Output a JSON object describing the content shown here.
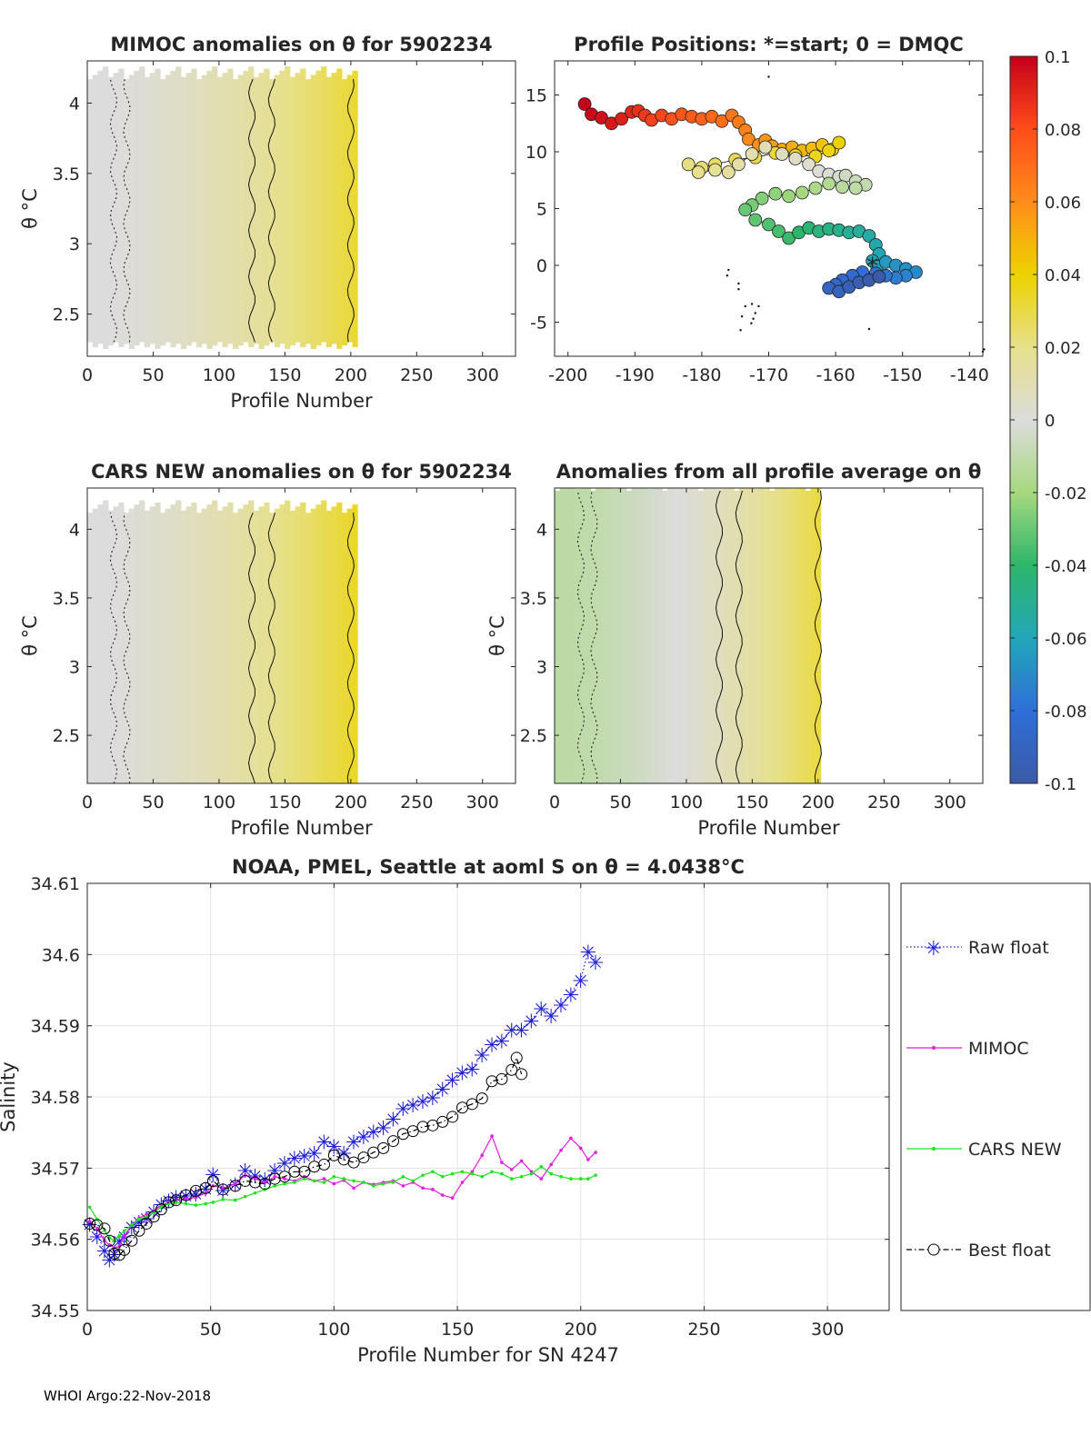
{
  "colorbar": {
    "ticks": [
      {
        "value": 0.1,
        "label": "0.1"
      },
      {
        "value": 0.08,
        "label": "0.08"
      },
      {
        "value": 0.06,
        "label": "0.06"
      },
      {
        "value": 0.04,
        "label": "0.04"
      },
      {
        "value": 0.02,
        "label": "0.02"
      },
      {
        "value": 0,
        "label": "0"
      },
      {
        "value": -0.02,
        "label": "-0.02"
      },
      {
        "value": -0.04,
        "label": "-0.04"
      },
      {
        "value": -0.06,
        "label": "-0.06"
      },
      {
        "value": -0.08,
        "label": "-0.08"
      },
      {
        "value": -0.1,
        "label": "-0.1"
      }
    ],
    "stops": [
      "#3b5aa8",
      "#2f6fd8",
      "#22a7b8",
      "#2db66a",
      "#a6d87e",
      "#dcdcdc",
      "#e6e08a",
      "#ecd300",
      "#ff8c1a",
      "#ff4d1a",
      "#c4001a"
    ]
  },
  "chart_data": [
    {
      "id": "mimoc",
      "type": "heatmap",
      "title": "MIMOC anomalies on θ  for 5902234",
      "xlabel": "Profile Number",
      "ylabel": "θ °C",
      "xlim": [
        0,
        325
      ],
      "ylim": [
        2.2,
        4.3
      ],
      "xticks": [
        0,
        50,
        100,
        150,
        200,
        250,
        300
      ],
      "yticks": [
        2.5,
        3,
        3.5,
        4
      ],
      "data_xmax": 205,
      "data_yrange": [
        2.3,
        4.17
      ],
      "anomaly_start": 0.0,
      "anomaly_end": 0.032
    },
    {
      "id": "positions",
      "type": "scatter",
      "title": "Profile Positions: *=start; 0 = DMQC",
      "xlabel": "",
      "ylabel": "",
      "xlim": [
        -202,
        -138
      ],
      "ylim": [
        -8,
        18
      ],
      "xticks": [
        -200,
        -190,
        -180,
        -170,
        -160,
        -150,
        -140
      ],
      "yticks": [
        -5,
        0,
        5,
        10,
        15
      ],
      "track": [
        [
          -197.5,
          14.2
        ],
        [
          -196.5,
          13.3
        ],
        [
          -195,
          13
        ],
        [
          -193.5,
          12.5
        ],
        [
          -192,
          12.9
        ],
        [
          -190.5,
          13.5
        ],
        [
          -189.5,
          13.6
        ],
        [
          -188.5,
          13.2
        ],
        [
          -187.5,
          12.8
        ],
        [
          -186,
          13.2
        ],
        [
          -184.5,
          12.9
        ],
        [
          -183,
          13.3
        ],
        [
          -181.5,
          13.1
        ],
        [
          -180,
          12.9
        ],
        [
          -178.5,
          13.1
        ],
        [
          -177,
          12.7
        ],
        [
          -175.5,
          13.2
        ],
        [
          -174.5,
          12.6
        ],
        [
          -173.5,
          11.9
        ],
        [
          -173,
          11.1
        ],
        [
          -171.5,
          10.6
        ],
        [
          -170.5,
          11
        ],
        [
          -169.5,
          10.5
        ],
        [
          -168,
          10.2
        ],
        [
          -166.5,
          10.4
        ],
        [
          -165,
          10.1
        ],
        [
          -163.5,
          10.3
        ],
        [
          -162,
          10.6
        ],
        [
          -160.5,
          10.2
        ],
        [
          -159.5,
          10.8
        ],
        [
          -161,
          10.1
        ],
        [
          -163,
          9.6
        ],
        [
          -166,
          9.7
        ],
        [
          -169,
          9.9
        ],
        [
          -172,
          9.5
        ],
        [
          -175,
          9.3
        ],
        [
          -178,
          8.9
        ],
        [
          -180,
          8.6
        ],
        [
          -182,
          8.9
        ],
        [
          -180.5,
          8.2
        ],
        [
          -178,
          8.4
        ],
        [
          -176,
          8.2
        ],
        [
          -174.5,
          8.9
        ],
        [
          -172.5,
          9.8
        ],
        [
          -170.5,
          10.4
        ],
        [
          -168,
          9.8
        ],
        [
          -166,
          9.4
        ],
        [
          -164,
          8.9
        ],
        [
          -162.5,
          8.3
        ],
        [
          -161,
          8.0
        ],
        [
          -159.5,
          7.8
        ],
        [
          -158.5,
          7.9
        ],
        [
          -157,
          7.4
        ],
        [
          -155.5,
          7.1
        ],
        [
          -157,
          6.8
        ],
        [
          -159,
          6.9
        ],
        [
          -161,
          7.2
        ],
        [
          -163,
          6.8
        ],
        [
          -165,
          6.4
        ],
        [
          -167,
          6.1
        ],
        [
          -169,
          6.3
        ],
        [
          -171,
          5.9
        ],
        [
          -172.5,
          5.3
        ],
        [
          -173.5,
          4.9
        ],
        [
          -172,
          4.0
        ],
        [
          -170,
          3.6
        ],
        [
          -168.5,
          3.0
        ],
        [
          -167,
          2.4
        ],
        [
          -165.5,
          2.9
        ],
        [
          -164,
          3.3
        ],
        [
          -162.5,
          3.0
        ],
        [
          -161,
          3.2
        ],
        [
          -159.5,
          3.1
        ],
        [
          -158,
          2.9
        ],
        [
          -156.5,
          3.0
        ],
        [
          -155,
          2.6
        ],
        [
          -154,
          1.8
        ],
        [
          -153.5,
          1.0
        ],
        [
          -154.5,
          0.4
        ],
        [
          -153.8,
          -0.1
        ],
        [
          -152.5,
          0.3
        ],
        [
          -151,
          0.0
        ],
        [
          -149.5,
          -0.3
        ],
        [
          -148,
          -0.6
        ],
        [
          -149.5,
          -0.9
        ],
        [
          -151,
          -1.1
        ],
        [
          -152.5,
          -0.9
        ],
        [
          -154,
          -0.7
        ],
        [
          -156,
          -0.6
        ],
        [
          -157.5,
          -0.9
        ],
        [
          -159,
          -1.3
        ],
        [
          -160,
          -1.7
        ],
        [
          -161,
          -2.0
        ],
        [
          -159.5,
          -2.3
        ],
        [
          -158,
          -1.9
        ],
        [
          -156.5,
          -1.5
        ],
        [
          -155,
          -1.3
        ],
        [
          -153.5,
          -1.0
        ]
      ],
      "start": [
        -154.5,
        0.2
      ],
      "stray_points": [
        [
          -176,
          -0.4
        ],
        [
          -176.2,
          -0.9
        ],
        [
          -174.5,
          -1.6
        ],
        [
          -174.5,
          -2.1
        ],
        [
          -173.5,
          -3.6
        ],
        [
          -172.5,
          -3.4
        ],
        [
          -171.5,
          -3.6
        ],
        [
          -172,
          -4.2
        ],
        [
          -174,
          -4.5
        ],
        [
          -172.3,
          -4.7
        ],
        [
          -174.2,
          -5.7
        ],
        [
          -172.6,
          -5.1
        ],
        [
          -170,
          16.6
        ],
        [
          -138,
          -7.6
        ],
        [
          -137.8,
          -7.4
        ],
        [
          -155,
          -5.6
        ],
        [
          -165.5,
          3.3
        ],
        [
          -158.5,
          8.3
        ]
      ],
      "color_range": [
        -0.1,
        0.1
      ]
    },
    {
      "id": "cars",
      "type": "heatmap",
      "title": "CARS NEW anomalies on θ for 5902234",
      "xlabel": "Profile Number",
      "ylabel": "θ °C",
      "xlim": [
        0,
        325
      ],
      "ylim": [
        2.15,
        4.3
      ],
      "xticks": [
        0,
        50,
        100,
        150,
        200,
        250,
        300
      ],
      "yticks": [
        2.5,
        3,
        3.5,
        4
      ],
      "data_xmax": 205,
      "data_yrange": [
        2.15,
        4.12
      ],
      "anomaly_start": 0.0,
      "anomaly_end": 0.034
    },
    {
      "id": "allavg",
      "type": "heatmap",
      "title": "Anomalies from all profile average on θ",
      "xlabel": "Profile Number",
      "ylabel": "θ °C",
      "xlim": [
        0,
        325
      ],
      "ylim": [
        2.15,
        4.3
      ],
      "xticks": [
        0,
        50,
        100,
        150,
        200,
        250,
        300
      ],
      "yticks": [
        2.5,
        3,
        3.5,
        4
      ],
      "data_xmax": 202,
      "data_yrange": [
        2.15,
        4.28
      ],
      "anomaly_start": -0.012,
      "anomaly_end": 0.03
    },
    {
      "id": "salinity",
      "type": "line",
      "title": "NOAA, PMEL, Seattle at aoml S on θ = 4.0438°C",
      "xlabel": "Profile Number for SN 4247",
      "ylabel": "Salinity",
      "xlim": [
        0,
        325
      ],
      "ylim": [
        34.55,
        34.61
      ],
      "xticks": [
        0,
        50,
        100,
        150,
        200,
        250,
        300
      ],
      "yticks": [
        34.55,
        34.56,
        34.57,
        34.58,
        34.59,
        34.6,
        34.61
      ],
      "ytick_labels": [
        "34.55",
        "34.56",
        "34.57",
        "34.58",
        "34.59",
        "34.6",
        "34.61"
      ],
      "grid": true,
      "series": [
        {
          "name": "Raw float",
          "color": "#1f1fd6",
          "marker": "star",
          "line": "dotted",
          "x": [
            1,
            4,
            7,
            9,
            11,
            13,
            15,
            18,
            21,
            24,
            27,
            30,
            33,
            36,
            40,
            44,
            48,
            51,
            55,
            60,
            64,
            68,
            72,
            76,
            80,
            84,
            88,
            92,
            96,
            100,
            104,
            108,
            112,
            116,
            120,
            124,
            128,
            132,
            136,
            140,
            144,
            148,
            152,
            156,
            160,
            164,
            168,
            172,
            176,
            180,
            184,
            188,
            192,
            196,
            200,
            203,
            206
          ],
          "y": [
            34.5622,
            34.5605,
            34.5585,
            34.5572,
            34.558,
            34.5598,
            34.5605,
            34.5618,
            34.5625,
            34.563,
            34.564,
            34.565,
            34.5655,
            34.566,
            34.5662,
            34.5665,
            34.5672,
            34.5692,
            34.567,
            34.5678,
            34.5698,
            34.569,
            34.5685,
            34.5698,
            34.5708,
            34.5715,
            34.5718,
            34.5722,
            34.5738,
            34.5732,
            34.5722,
            34.5738,
            34.5745,
            34.5752,
            34.5758,
            34.577,
            34.5785,
            34.579,
            34.5795,
            34.58,
            34.5812,
            34.5825,
            34.5835,
            34.584,
            34.586,
            34.5875,
            34.588,
            34.5895,
            34.5895,
            34.5908,
            34.5925,
            34.5915,
            34.593,
            34.5945,
            34.5965,
            34.6005,
            34.599
          ]
        },
        {
          "name": "MIMOC",
          "color": "#e619e6",
          "marker": "dot",
          "line": "solid",
          "x": [
            1,
            4,
            7,
            9,
            11,
            13,
            15,
            18,
            21,
            24,
            27,
            30,
            33,
            36,
            40,
            44,
            48,
            51,
            55,
            60,
            64,
            68,
            72,
            76,
            80,
            84,
            88,
            92,
            96,
            100,
            104,
            108,
            112,
            116,
            120,
            124,
            128,
            132,
            136,
            140,
            144,
            148,
            152,
            156,
            160,
            164,
            168,
            172,
            176,
            180,
            184,
            188,
            192,
            196,
            200,
            203,
            206
          ],
          "y": [
            34.5625,
            34.5615,
            34.5598,
            34.5592,
            34.5588,
            34.559,
            34.5605,
            34.562,
            34.563,
            34.5635,
            34.564,
            34.5648,
            34.5652,
            34.5655,
            34.5657,
            34.5659,
            34.5665,
            34.5675,
            34.5672,
            34.5678,
            34.569,
            34.5685,
            34.568,
            34.5688,
            34.5685,
            34.5682,
            34.5688,
            34.5682,
            34.5685,
            34.5678,
            34.5683,
            34.5672,
            34.568,
            34.5677,
            34.568,
            34.5682,
            34.5675,
            34.568,
            34.5672,
            34.567,
            34.5662,
            34.5658,
            34.568,
            34.5695,
            34.5718,
            34.5745,
            34.5708,
            34.5698,
            34.571,
            34.5695,
            34.5685,
            34.5705,
            34.5725,
            34.5742,
            34.5728,
            34.5712,
            34.5722
          ]
        },
        {
          "name": "CARS NEW",
          "color": "#19e619",
          "marker": "dot",
          "line": "solid",
          "x": [
            1,
            4,
            7,
            9,
            11,
            13,
            15,
            18,
            21,
            24,
            27,
            30,
            33,
            36,
            40,
            44,
            48,
            51,
            55,
            60,
            64,
            68,
            72,
            76,
            80,
            84,
            88,
            92,
            96,
            100,
            104,
            108,
            112,
            116,
            120,
            124,
            128,
            132,
            136,
            140,
            144,
            148,
            152,
            156,
            160,
            164,
            168,
            172,
            176,
            180,
            184,
            188,
            192,
            196,
            200,
            203,
            206
          ],
          "y": [
            34.5645,
            34.5628,
            34.5612,
            34.5602,
            34.5598,
            34.5605,
            34.5612,
            34.562,
            34.5628,
            34.5632,
            34.5638,
            34.5645,
            34.565,
            34.5652,
            34.565,
            34.5648,
            34.565,
            34.5652,
            34.5656,
            34.5655,
            34.566,
            34.5665,
            34.567,
            34.5675,
            34.5678,
            34.568,
            34.5685,
            34.5682,
            34.568,
            34.5688,
            34.5685,
            34.5682,
            34.568,
            34.5675,
            34.5678,
            34.568,
            34.5688,
            34.5682,
            34.569,
            34.5695,
            34.5688,
            34.5692,
            34.5695,
            34.5692,
            34.5688,
            34.5695,
            34.5692,
            34.5685,
            34.5688,
            34.5692,
            34.5702,
            34.5692,
            34.5688,
            34.5685,
            34.5685,
            34.5685,
            34.569
          ]
        },
        {
          "name": "Best float",
          "color": "#000000",
          "marker": "circle",
          "line": "dashdot",
          "x": [
            1,
            4,
            7,
            9,
            11,
            13,
            15,
            18,
            21,
            24,
            27,
            30,
            33,
            36,
            40,
            44,
            48,
            51,
            55,
            60,
            64,
            68,
            72,
            76,
            80,
            84,
            88,
            92,
            96,
            100,
            104,
            108,
            112,
            116,
            120,
            124,
            128,
            132,
            136,
            140,
            144,
            148,
            152,
            156,
            160,
            164,
            168,
            172,
            174,
            176
          ],
          "y": [
            34.5622,
            34.562,
            34.5615,
            34.5598,
            34.558,
            34.5578,
            34.5585,
            34.5598,
            34.5612,
            34.5622,
            34.5632,
            34.5642,
            34.5652,
            34.5655,
            34.5662,
            34.5668,
            34.5672,
            34.5682,
            34.567,
            34.5675,
            34.5682,
            34.568,
            34.5678,
            34.5685,
            34.5688,
            34.5695,
            34.5695,
            34.5702,
            34.5705,
            34.5718,
            34.5712,
            34.5708,
            34.5715,
            34.5722,
            34.5728,
            34.5738,
            34.5748,
            34.5752,
            34.5758,
            34.576,
            34.5765,
            34.5772,
            34.5785,
            34.579,
            34.5798,
            34.5822,
            34.5825,
            34.5838,
            34.5855,
            34.5832
          ]
        }
      ],
      "legend": {
        "placement": "right",
        "entries": [
          "Raw float",
          "MIMOC",
          "CARS NEW",
          "Best float"
        ]
      }
    }
  ],
  "footer": {
    "text": "WHOI Argo:22-Nov-2018"
  }
}
